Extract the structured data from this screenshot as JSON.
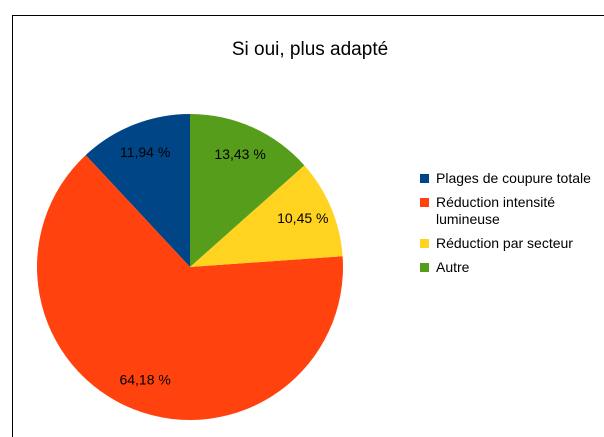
{
  "chart_data": {
    "type": "pie",
    "title": "Si oui, plus adapté",
    "series": [
      {
        "name": "Plages de coupure totale",
        "color": "#004586",
        "values": [
          11.94
        ],
        "value_labels": [
          "11,94 %"
        ]
      },
      {
        "name": "Réduction intensité lumineuse",
        "color": "#ff420e",
        "values": [
          64.18
        ],
        "value_labels": [
          "64,18 %"
        ]
      },
      {
        "name": "Réduction par secteur",
        "color": "#ffd320",
        "values": [
          10.45
        ],
        "value_labels": [
          "10,45 %"
        ]
      },
      {
        "name": "Autre",
        "color": "#579d1c",
        "values": [
          13.43
        ],
        "value_labels": [
          "13,43 %"
        ]
      }
    ],
    "legend": "right"
  }
}
